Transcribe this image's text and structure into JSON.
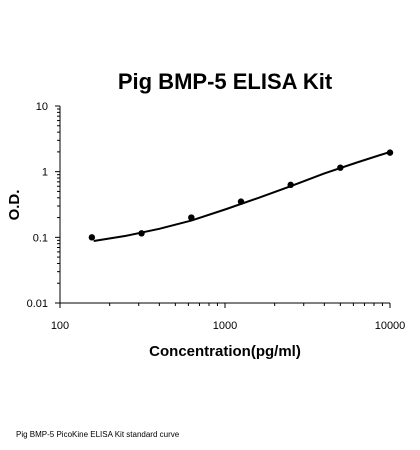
{
  "chart_data": {
    "type": "scatter",
    "title": "Pig BMP-5 ELISA Kit",
    "xlabel": "Concentration(pg/ml)",
    "ylabel": "O.D.",
    "x_scale": "log",
    "y_scale": "log",
    "xlim": [
      100,
      10000
    ],
    "ylim": [
      0.01,
      10
    ],
    "x_ticks": [
      "100",
      "1000",
      "10000"
    ],
    "y_ticks": [
      "10",
      "1",
      "0.1",
      "0.01"
    ],
    "grid": false,
    "legend": "none",
    "series": [
      {
        "points": [
          {
            "x": 156,
            "y": 0.1
          },
          {
            "x": 312,
            "y": 0.115
          },
          {
            "x": 625,
            "y": 0.2
          },
          {
            "x": 1250,
            "y": 0.35
          },
          {
            "x": 2500,
            "y": 0.63
          },
          {
            "x": 5000,
            "y": 1.15
          },
          {
            "x": 10000,
            "y": 1.95
          }
        ],
        "fit_curve": [
          {
            "x": 160,
            "y": 0.088
          },
          {
            "x": 250,
            "y": 0.105
          },
          {
            "x": 400,
            "y": 0.135
          },
          {
            "x": 625,
            "y": 0.18
          },
          {
            "x": 1000,
            "y": 0.265
          },
          {
            "x": 1600,
            "y": 0.4
          },
          {
            "x": 2500,
            "y": 0.6
          },
          {
            "x": 4000,
            "y": 0.94
          },
          {
            "x": 6300,
            "y": 1.38
          },
          {
            "x": 10000,
            "y": 2.0
          }
        ]
      }
    ]
  },
  "caption": "Pig BMP-5 PicoKine ELISA Kit standard curve",
  "colors": {
    "line": "#000000",
    "points": "#000000"
  }
}
